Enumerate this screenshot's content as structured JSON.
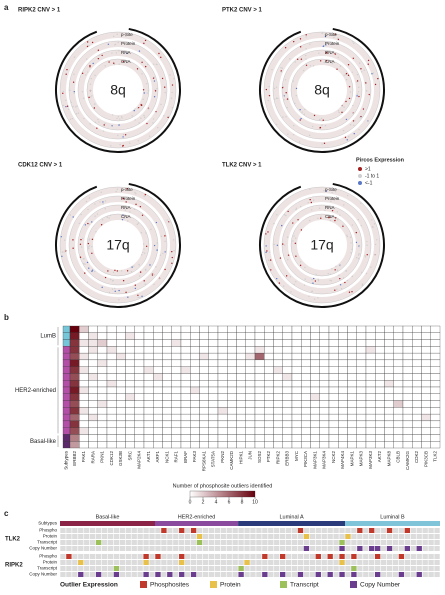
{
  "panel_a": {
    "letter": "a",
    "tracks": [
      "p-Site",
      "Protein",
      "RNA",
      "CNA"
    ],
    "plots": [
      {
        "title": "RIPK2 CNV > 1",
        "region": "8q"
      },
      {
        "title": "PTK2 CNV > 1",
        "region": "8q"
      },
      {
        "title": "CDK12 CNV > 1",
        "region": "17q"
      },
      {
        "title": "TLK2 CNV > 1",
        "region": "17q"
      }
    ],
    "legend": {
      "title": "Pircos Expression",
      "items": [
        {
          "label": ">1",
          "color": "#a31d1d"
        },
        {
          "label": "-1 to 1",
          "color": "#cfcfcf"
        },
        {
          "label": "<-1",
          "color": "#5a78c4"
        }
      ]
    }
  },
  "panel_b": {
    "letter": "b",
    "subtype_column_label": "Subtypes",
    "genes": [
      "ERBB2",
      "PAK1",
      "RARA",
      "PKN1",
      "CDK12",
      "GSK3B",
      "SRC",
      "MAP2K4",
      "AKT1",
      "ARF1",
      "NCK1",
      "RAF1",
      "BRAF",
      "PAK3",
      "RPS6KA1",
      "STAT5A",
      "PKN2",
      "CAMK2D",
      "HIPK1",
      "JUN",
      "SOS2",
      "PTK2",
      "RIPK2",
      "ERBB3",
      "MYC",
      "PIK3CA",
      "MAP3K1",
      "MAP3K4",
      "NCK2",
      "MAP4K4",
      "MAPK1",
      "MAPK3",
      "MAP3K3",
      "AKT2",
      "MAPK8",
      "CBLB",
      "CAMK2G",
      "CDK2",
      "PIK3CB",
      "TLK2"
    ],
    "row_groups": [
      {
        "name": "LumB",
        "color": "#74c6d8",
        "rows": [
          [
            10,
            2,
            0,
            0,
            0,
            0,
            0,
            0,
            0,
            0,
            0,
            0,
            0,
            0,
            0,
            0,
            0,
            0,
            0,
            0,
            0,
            0,
            0,
            0,
            0,
            0,
            0,
            0,
            0,
            0,
            0,
            0,
            0,
            0,
            0,
            0,
            0,
            0,
            0,
            0
          ],
          [
            9,
            0,
            1,
            0,
            0,
            0,
            1,
            0,
            0,
            0,
            0,
            0,
            0,
            0,
            0,
            0,
            0,
            0,
            0,
            0,
            0,
            0,
            0,
            0,
            0,
            0,
            0,
            0,
            0,
            0,
            0,
            0,
            0,
            0,
            0,
            0,
            0,
            0,
            0,
            0
          ],
          [
            8,
            1,
            1,
            2,
            0,
            0,
            0,
            0,
            0,
            0,
            0,
            1,
            0,
            0,
            0,
            0,
            0,
            0,
            0,
            0,
            0,
            0,
            0,
            0,
            0,
            0,
            0,
            0,
            0,
            0,
            0,
            0,
            0,
            0,
            0,
            0,
            0,
            0,
            0,
            0
          ]
        ]
      },
      {
        "name": "HER2-enriched",
        "color": "#b44fa8",
        "rows": [
          [
            8,
            0,
            1,
            0,
            1,
            0,
            0,
            0,
            0,
            0,
            0,
            0,
            0,
            0,
            0,
            0,
            0,
            0,
            0,
            0,
            1,
            0,
            0,
            0,
            0,
            0,
            0,
            0,
            0,
            0,
            0,
            0,
            1,
            0,
            0,
            0,
            0,
            0,
            0,
            0
          ],
          [
            7,
            1,
            0,
            0,
            0,
            1,
            0,
            0,
            0,
            0,
            0,
            0,
            0,
            0,
            1,
            0,
            0,
            0,
            0,
            1,
            6,
            0,
            0,
            0,
            0,
            0,
            0,
            0,
            0,
            0,
            0,
            0,
            0,
            0,
            0,
            0,
            0,
            0,
            0,
            0
          ],
          [
            9,
            0,
            0,
            1,
            0,
            0,
            0,
            0,
            0,
            0,
            0,
            0,
            0,
            0,
            0,
            0,
            0,
            0,
            0,
            0,
            0,
            0,
            0,
            0,
            0,
            0,
            0,
            0,
            0,
            0,
            0,
            0,
            0,
            0,
            0,
            0,
            0,
            0,
            0,
            0
          ],
          [
            8,
            1,
            0,
            0,
            0,
            0,
            0,
            0,
            1,
            0,
            0,
            0,
            1,
            0,
            0,
            0,
            0,
            0,
            0,
            0,
            0,
            0,
            1,
            0,
            0,
            0,
            0,
            0,
            0,
            0,
            0,
            0,
            0,
            0,
            0,
            0,
            0,
            0,
            0,
            0
          ],
          [
            7,
            0,
            1,
            0,
            0,
            0,
            0,
            0,
            0,
            1,
            0,
            0,
            0,
            0,
            0,
            0,
            0,
            0,
            0,
            0,
            0,
            0,
            0,
            1,
            0,
            0,
            0,
            0,
            0,
            0,
            0,
            0,
            0,
            0,
            0,
            0,
            0,
            0,
            0,
            0
          ],
          [
            8,
            0,
            0,
            0,
            1,
            0,
            0,
            0,
            0,
            0,
            0,
            0,
            0,
            0,
            0,
            0,
            0,
            0,
            0,
            0,
            0,
            0,
            0,
            0,
            0,
            0,
            0,
            0,
            0,
            0,
            0,
            0,
            0,
            0,
            1,
            0,
            0,
            0,
            0,
            0
          ],
          [
            9,
            1,
            0,
            0,
            0,
            0,
            0,
            0,
            0,
            0,
            0,
            0,
            0,
            1,
            0,
            0,
            0,
            0,
            0,
            0,
            0,
            0,
            0,
            0,
            0,
            0,
            0,
            0,
            0,
            0,
            0,
            0,
            0,
            0,
            0,
            0,
            0,
            0,
            0,
            0
          ],
          [
            8,
            0,
            0,
            0,
            0,
            0,
            1,
            0,
            0,
            0,
            0,
            0,
            0,
            0,
            0,
            0,
            0,
            0,
            0,
            0,
            0,
            0,
            0,
            0,
            0,
            0,
            1,
            0,
            0,
            0,
            0,
            0,
            0,
            0,
            0,
            0,
            0,
            0,
            0,
            0
          ],
          [
            7,
            0,
            0,
            1,
            0,
            0,
            0,
            0,
            0,
            0,
            0,
            0,
            0,
            0,
            0,
            0,
            0,
            0,
            0,
            0,
            0,
            0,
            0,
            0,
            0,
            0,
            0,
            0,
            0,
            0,
            0,
            0,
            0,
            0,
            0,
            2,
            0,
            0,
            0,
            0
          ],
          [
            8,
            1,
            0,
            0,
            0,
            0,
            0,
            0,
            0,
            0,
            0,
            0,
            0,
            0,
            0,
            0,
            1,
            0,
            0,
            0,
            0,
            0,
            0,
            0,
            0,
            0,
            0,
            0,
            0,
            0,
            0,
            0,
            0,
            0,
            0,
            0,
            0,
            0,
            0,
            0
          ],
          [
            6,
            0,
            1,
            0,
            0,
            0,
            0,
            0,
            0,
            0,
            0,
            0,
            0,
            0,
            0,
            0,
            0,
            0,
            0,
            0,
            0,
            0,
            0,
            0,
            0,
            0,
            0,
            0,
            0,
            0,
            0,
            0,
            0,
            0,
            0,
            0,
            0,
            0,
            1,
            0
          ],
          [
            8,
            0,
            0,
            0,
            0,
            0,
            0,
            0,
            0,
            0,
            0,
            0,
            0,
            0,
            0,
            0,
            0,
            0,
            0,
            0,
            0,
            0,
            0,
            0,
            0,
            0,
            0,
            0,
            0,
            0,
            0,
            0,
            0,
            0,
            0,
            0,
            0,
            0,
            0,
            0
          ],
          [
            7,
            1,
            0,
            0,
            0,
            0,
            0,
            0,
            0,
            0,
            0,
            0,
            0,
            0,
            0,
            0,
            0,
            0,
            0,
            0,
            0,
            0,
            0,
            0,
            0,
            0,
            0,
            0,
            0,
            0,
            0,
            0,
            0,
            0,
            0,
            0,
            0,
            0,
            0,
            0
          ]
        ]
      },
      {
        "name": "Basal-like",
        "color": "#5c2a6b",
        "rows": [
          [
            5,
            0,
            0,
            0,
            0,
            0,
            0,
            0,
            0,
            0,
            0,
            0,
            0,
            0,
            0,
            0,
            0,
            0,
            0,
            0,
            0,
            0,
            0,
            0,
            0,
            0,
            0,
            0,
            0,
            0,
            0,
            0,
            0,
            0,
            0,
            0,
            0,
            0,
            0,
            0
          ],
          [
            4,
            0,
            0,
            0,
            0,
            0,
            0,
            0,
            0,
            0,
            0,
            0,
            0,
            0,
            0,
            0,
            0,
            0,
            0,
            0,
            0,
            0,
            0,
            0,
            0,
            0,
            0,
            0,
            0,
            0,
            0,
            0,
            0,
            0,
            0,
            0,
            0,
            0,
            0,
            0
          ]
        ]
      }
    ],
    "colorbar": {
      "title": "Number of phosphosite outliers identified",
      "clim": [
        0,
        10
      ],
      "ticks": [
        0,
        2,
        4,
        6,
        8,
        10
      ],
      "colors": [
        "#ffffff",
        "#67000d"
      ]
    }
  },
  "panel_c": {
    "letter": "c",
    "subtype_row_label": "Subtypes",
    "subtypes": [
      {
        "name": "Basal-like",
        "color": "#8b2346",
        "count": 16
      },
      {
        "name": "HER2-enriched",
        "color": "#8a4b9e",
        "count": 14
      },
      {
        "name": "Luminal A",
        "color": "#2a3a7a",
        "count": 18
      },
      {
        "name": "Luminal B",
        "color": "#7fc4d9",
        "count": 16
      }
    ],
    "genes": [
      {
        "name": "TLK2",
        "tracks": [
          {
            "name": "Phospho",
            "outliers": [
              17,
              20,
              22,
              40,
              50,
              52,
              55,
              58
            ]
          },
          {
            "name": "Protein",
            "outliers": [
              23,
              41,
              48
            ]
          },
          {
            "name": "Transcript",
            "outliers": [
              6,
              23,
              47
            ]
          },
          {
            "name": "Copy Number",
            "outliers": [
              41,
              47,
              50,
              52,
              53,
              55,
              58,
              60
            ]
          }
        ]
      },
      {
        "name": "RIPK2",
        "tracks": [
          {
            "name": "Phospho",
            "outliers": [
              1,
              14,
              16,
              20,
              34,
              37,
              43,
              45,
              47,
              49,
              53,
              57
            ]
          },
          {
            "name": "Protein",
            "outliers": [
              3,
              14,
              20,
              31,
              47
            ]
          },
          {
            "name": "Transcript",
            "outliers": [
              9,
              30,
              49
            ]
          },
          {
            "name": "Copy Number",
            "outliers": [
              3,
              6,
              9,
              14,
              16,
              18,
              20,
              22,
              30,
              34,
              37,
              40,
              43,
              45,
              47,
              49,
              53,
              57,
              60
            ]
          }
        ]
      }
    ],
    "legend": {
      "title": "Outlier Expression",
      "items": [
        {
          "label": "Phosphosites",
          "color": "#c0392b"
        },
        {
          "label": "Protein",
          "color": "#e8c14a"
        },
        {
          "label": "Transcript",
          "color": "#9cc05a"
        },
        {
          "label": "Copy Number",
          "color": "#6a3d8f"
        }
      ]
    }
  }
}
